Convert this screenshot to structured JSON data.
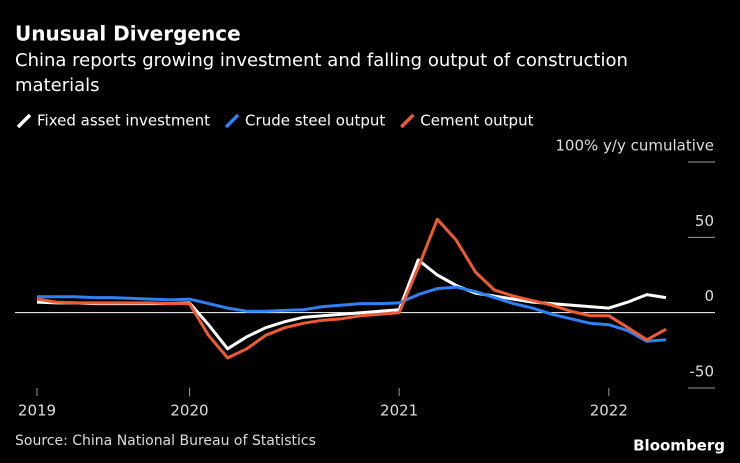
{
  "chart_data": {
    "type": "line",
    "title": "Unusual Divergence",
    "subtitle": [
      "China reports growing investment and falling output of construction",
      "materials"
    ],
    "source": "Source: China National Bureau of Statistics",
    "brand": "Bloomberg",
    "categories": [
      "2019",
      null,
      null,
      null,
      null,
      null,
      null,
      null,
      "2020",
      null,
      null,
      null,
      null,
      null,
      null,
      null,
      null,
      null,
      null,
      "2021",
      null,
      null,
      null,
      null,
      null,
      null,
      null,
      null,
      null,
      null,
      "2022",
      null,
      null,
      null
    ],
    "series": [
      {
        "name": "Fixed asset investment",
        "color": "#ffffff",
        "values": [
          7,
          6.5,
          6.5,
          6,
          6,
          6,
          6,
          6,
          6.5,
          -8,
          -24,
          -16,
          -10,
          -6,
          -3,
          -2,
          -1,
          0,
          1,
          2,
          35,
          25,
          18,
          13,
          11,
          9,
          7,
          6,
          5,
          4,
          3,
          7,
          12,
          10
        ]
      },
      {
        "name": "Crude steel output",
        "color": "#2f7ff5",
        "values": [
          10.5,
          10.5,
          10.5,
          10,
          10,
          9.5,
          9,
          8.5,
          9,
          6,
          3,
          1,
          1,
          1.5,
          2,
          4,
          5,
          6,
          6,
          6.5,
          12,
          16,
          17,
          14,
          10,
          6,
          3,
          -1,
          -4,
          -7,
          -8,
          -12,
          -19,
          -18
        ]
      },
      {
        "name": "Cement output",
        "color": "#ee5a32",
        "values": [
          9,
          7,
          6.5,
          6.5,
          6.5,
          6.5,
          6.5,
          6,
          6,
          -15,
          -30,
          -24,
          -15,
          -10,
          -7,
          -5,
          -4,
          -2,
          -1,
          0,
          30,
          62,
          48,
          27,
          15,
          11,
          8,
          5,
          1,
          -2,
          -2,
          -10,
          -18,
          -11
        ]
      }
    ],
    "ylim": [
      -50,
      100
    ],
    "yticks": [
      {
        "value": 100,
        "label": "100% y/y cumulative"
      },
      50,
      0,
      -50
    ]
  }
}
